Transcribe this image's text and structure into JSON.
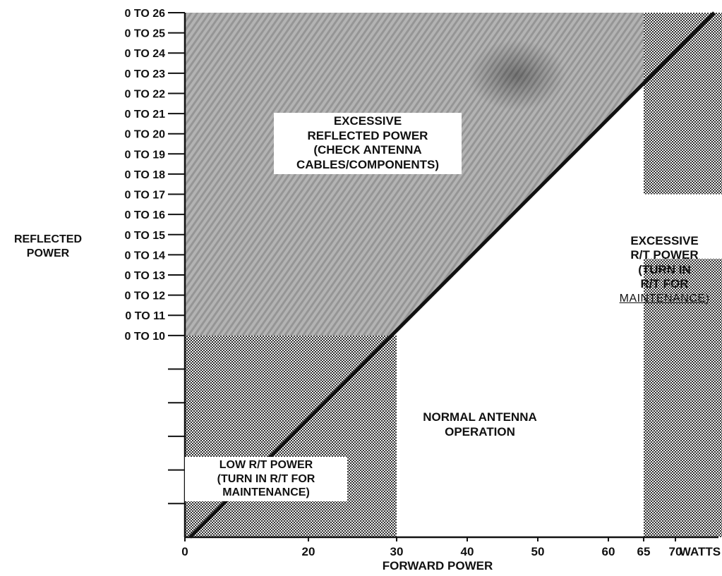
{
  "chart_data": {
    "type": "area",
    "title": "",
    "xlabel": "FORWARD POWER",
    "ylabel": "REFLECTED POWER",
    "x_ticks": [
      "0",
      "20",
      "30",
      "40",
      "50",
      "60",
      "65",
      "70",
      "WATTS"
    ],
    "y_ticks": [
      "0 TO 10",
      "0 TO 11",
      "0 TO 12",
      "0 TO 13",
      "0 TO 14",
      "0 TO 15",
      "0 TO 16",
      "0 TO 17",
      "0 TO 18",
      "0 TO 19",
      "0 TO 20",
      "0 TO 21",
      "0 TO 22",
      "0 TO 23",
      "0 TO 24",
      "0 TO 25",
      "0 TO 26"
    ],
    "unlabeled_ticks_below": 5,
    "boundary_line": {
      "description": "diagonal boundary between normal and excessive reflected power",
      "points": [
        {
          "x": 15,
          "y": 5
        },
        {
          "x": 75,
          "y": 26
        }
      ]
    },
    "regions": [
      {
        "name": "excessive_reflected",
        "lines": [
          "EXCESSIVE",
          "REFLECTED POWER",
          "(CHECK ANTENNA",
          "CABLES/COMPONENTS)"
        ],
        "fill": "diagonal-stipple"
      },
      {
        "name": "low_rt",
        "lines": [
          "LOW R/T POWER",
          "(TURN IN R/T FOR",
          "MAINTENANCE)"
        ],
        "fill": "dense-dots",
        "x_range": [
          0,
          30
        ]
      },
      {
        "name": "normal",
        "lines": [
          "NORMAL ANTENNA",
          "OPERATION"
        ],
        "fill": "white"
      },
      {
        "name": "excessive_rt",
        "lines": [
          "EXCESSIVE",
          "R/T POWER",
          "(TURN IN",
          "R/T FOR",
          "MAINTENANCE)"
        ],
        "fill": "dense-dots",
        "x_range": [
          65,
          75
        ]
      }
    ]
  },
  "colors": {
    "ink": "#111111",
    "shade": "#a9a9a9",
    "background": "#ffffff"
  }
}
